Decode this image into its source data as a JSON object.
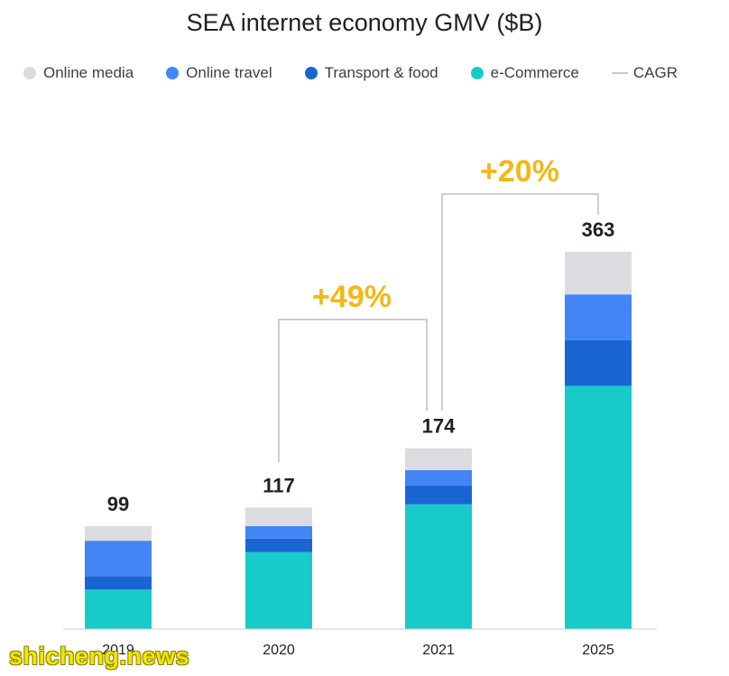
{
  "chart_data": {
    "type": "bar",
    "stacked": true,
    "title": "SEA internet economy GMV ($B)",
    "categories": [
      "2019",
      "2020",
      "2021",
      "2025"
    ],
    "totals": [
      99,
      117,
      174,
      363
    ],
    "series": [
      {
        "name": "e-Commerce",
        "color": "#17cbc9",
        "values": [
          38,
          74,
          120,
          234
        ]
      },
      {
        "name": "Transport & food",
        "color": "#1966d2",
        "values": [
          13,
          13,
          18,
          44
        ]
      },
      {
        "name": "Online travel",
        "color": "#4285f4",
        "values": [
          34,
          12,
          15,
          44
        ]
      },
      {
        "name": "Online media",
        "color": "#dadce0",
        "values": [
          14,
          18,
          21,
          41
        ]
      }
    ],
    "legend": [
      {
        "label": "Online media",
        "color": "#dadce0",
        "marker": "dot"
      },
      {
        "label": "Online travel",
        "color": "#4285f4",
        "marker": "dot"
      },
      {
        "label": "Transport & food",
        "color": "#1966d2",
        "marker": "dot"
      },
      {
        "label": "e-Commerce",
        "color": "#17cbc9",
        "marker": "dot"
      },
      {
        "label": "CAGR",
        "color": "#c8c8c8",
        "marker": "line"
      }
    ],
    "legend_position": "top",
    "cagr": [
      {
        "label": "+49%",
        "from": "2020",
        "to": "2021"
      },
      {
        "label": "+20%",
        "from": "2021",
        "to": "2025"
      }
    ],
    "cagr_color": "#f2b817",
    "ylim": [
      0,
      363
    ],
    "grid": false
  },
  "watermark": "shicheng.news"
}
